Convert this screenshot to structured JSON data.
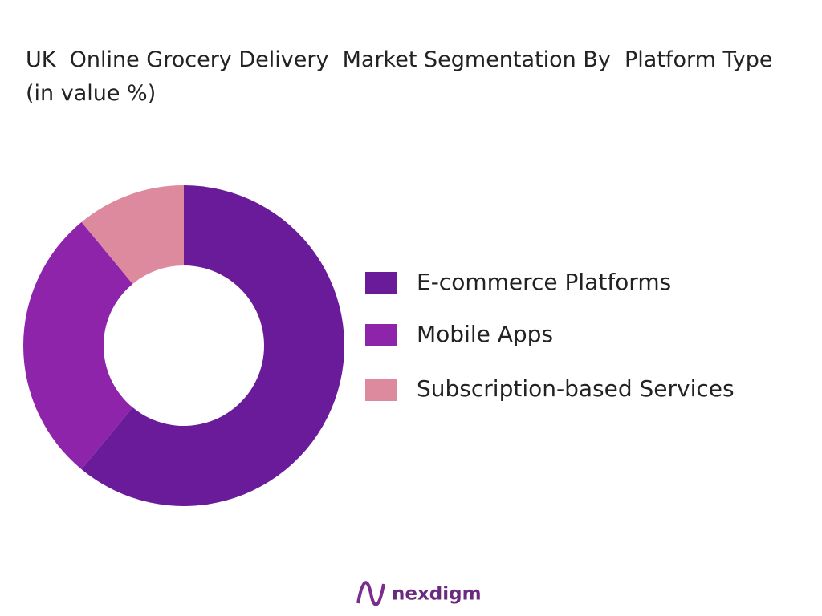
{
  "chart_data": {
    "type": "donut",
    "title": "UK  Online Grocery Delivery  Market Segmentation By  Platform Type (in value %)",
    "categories": [
      "E-commerce Platforms",
      "Mobile Apps",
      "Subscription-based Services"
    ],
    "values": [
      61,
      28,
      11
    ],
    "colors": [
      "#6a1b9a",
      "#8e24aa",
      "#de8a9e"
    ],
    "legend": "right"
  },
  "brand": "nexdigm"
}
